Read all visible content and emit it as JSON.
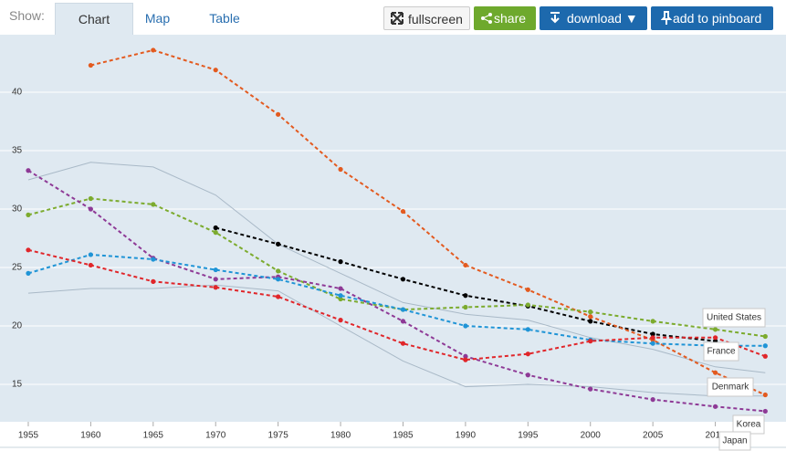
{
  "ui": {
    "show": "Show:",
    "tabs": [
      "Chart",
      "Map",
      "Table"
    ],
    "buttons": [
      "fullscreen",
      "share",
      "download ▼",
      "add to pinboard"
    ]
  },
  "chart_data": {
    "type": "line",
    "x": [
      1955,
      1960,
      1965,
      1970,
      1975,
      1980,
      1985,
      1990,
      1995,
      2000,
      2005,
      2010,
      2014
    ],
    "series": [
      {
        "color": "#a9b9c7",
        "values": [
          32.5,
          34.0,
          33.6,
          31.2,
          27.0,
          24.5,
          22.0,
          21.0,
          20.5,
          19.0,
          18.0,
          16.5,
          16.0
        ]
      },
      {
        "color": "#a9b9c7",
        "values": [
          22.8,
          23.2,
          23.2,
          23.5,
          23.0,
          20.0,
          17.0,
          14.8,
          15.0,
          14.8,
          14.3,
          14.0,
          14.0
        ]
      },
      {
        "color": "#000000",
        "values": [
          null,
          null,
          null,
          28.4,
          27.0,
          25.5,
          24.0,
          22.6,
          21.7,
          20.4,
          19.3,
          18.7,
          null
        ]
      },
      {
        "name": "Korea",
        "color": "#e35a1f",
        "values": [
          null,
          42.3,
          43.6,
          41.9,
          38.1,
          33.4,
          29.8,
          25.2,
          23.1,
          20.8,
          18.8,
          16.0,
          14.1
        ]
      },
      {
        "name": "United States",
        "color": "#7cab2e",
        "values": [
          29.5,
          30.9,
          30.4,
          28.0,
          24.7,
          22.3,
          21.4,
          21.6,
          21.8,
          21.2,
          20.4,
          19.7,
          19.1
        ]
      },
      {
        "name": "Japan",
        "color": "#8e3a96",
        "values": [
          33.3,
          30.0,
          25.8,
          24.0,
          24.2,
          23.2,
          20.4,
          17.4,
          15.8,
          14.6,
          13.7,
          13.1,
          12.7
        ]
      },
      {
        "name": "France",
        "color": "#1f94d6",
        "values": [
          24.5,
          26.1,
          25.7,
          24.8,
          24.0,
          22.6,
          21.4,
          20.0,
          19.7,
          18.8,
          18.5,
          18.3,
          18.3
        ]
      },
      {
        "name": "Denmark",
        "color": "#e0262a",
        "values": [
          26.5,
          25.2,
          23.8,
          23.3,
          22.5,
          20.5,
          18.5,
          17.1,
          17.6,
          18.7,
          19.0,
          19.0,
          17.4
        ]
      }
    ],
    "xlim": [
      1953,
      2015
    ],
    "xticks": [
      1955,
      1960,
      1965,
      1970,
      1975,
      1980,
      1985,
      1990,
      1995,
      2000,
      2005,
      2010
    ],
    "ylim": [
      12,
      45
    ],
    "yticks": [
      15,
      20,
      25,
      30,
      35,
      40
    ],
    "grid": true
  }
}
